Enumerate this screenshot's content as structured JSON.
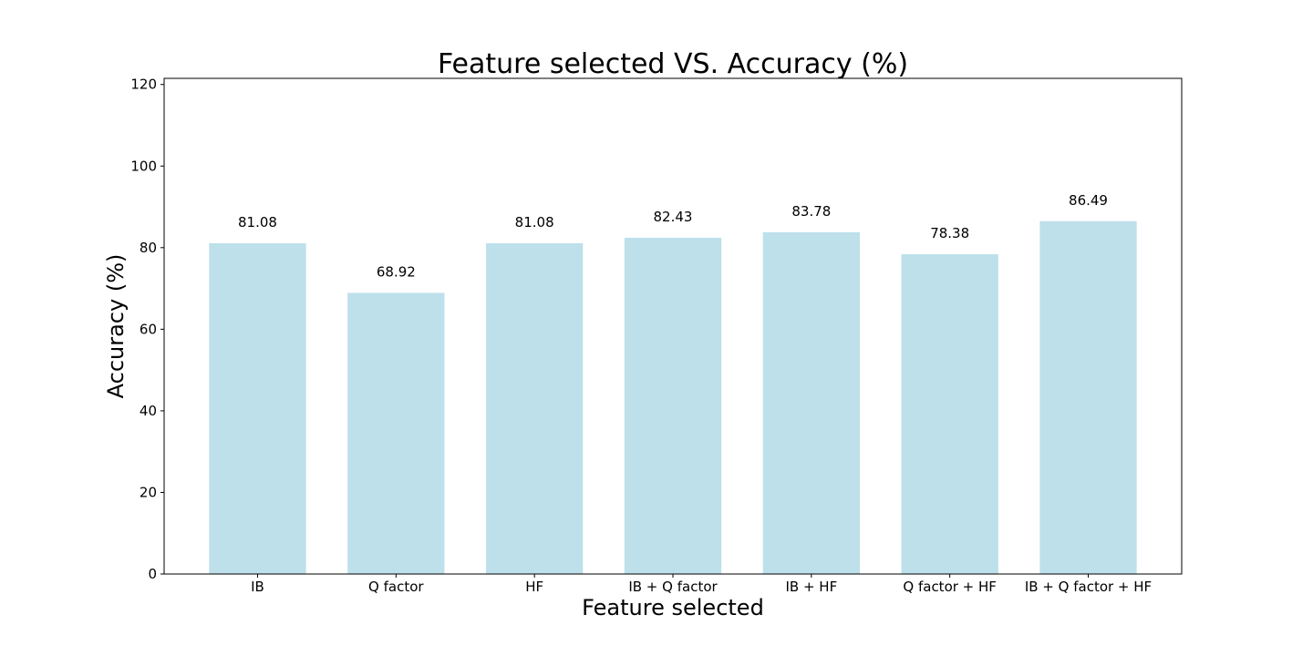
{
  "chart_data": {
    "type": "bar",
    "title": "Feature selected VS. Accuracy (%)",
    "xlabel": "Feature selected",
    "ylabel": "Accuracy (%)",
    "categories": [
      "IB",
      "Q factor",
      "HF",
      "IB + Q factor",
      "IB + HF",
      "Q factor + HF",
      "IB + Q factor + HF"
    ],
    "values": [
      81.08,
      68.92,
      81.08,
      82.43,
      83.78,
      78.38,
      86.49
    ],
    "value_labels": [
      "81.08",
      "68.92",
      "81.08",
      "82.43",
      "83.78",
      "78.38",
      "86.49"
    ],
    "ylim": [
      0,
      121.5
    ],
    "yticks": [
      0,
      20,
      40,
      60,
      80,
      100,
      120
    ],
    "grid": false,
    "bar_color": "#add8e6"
  }
}
